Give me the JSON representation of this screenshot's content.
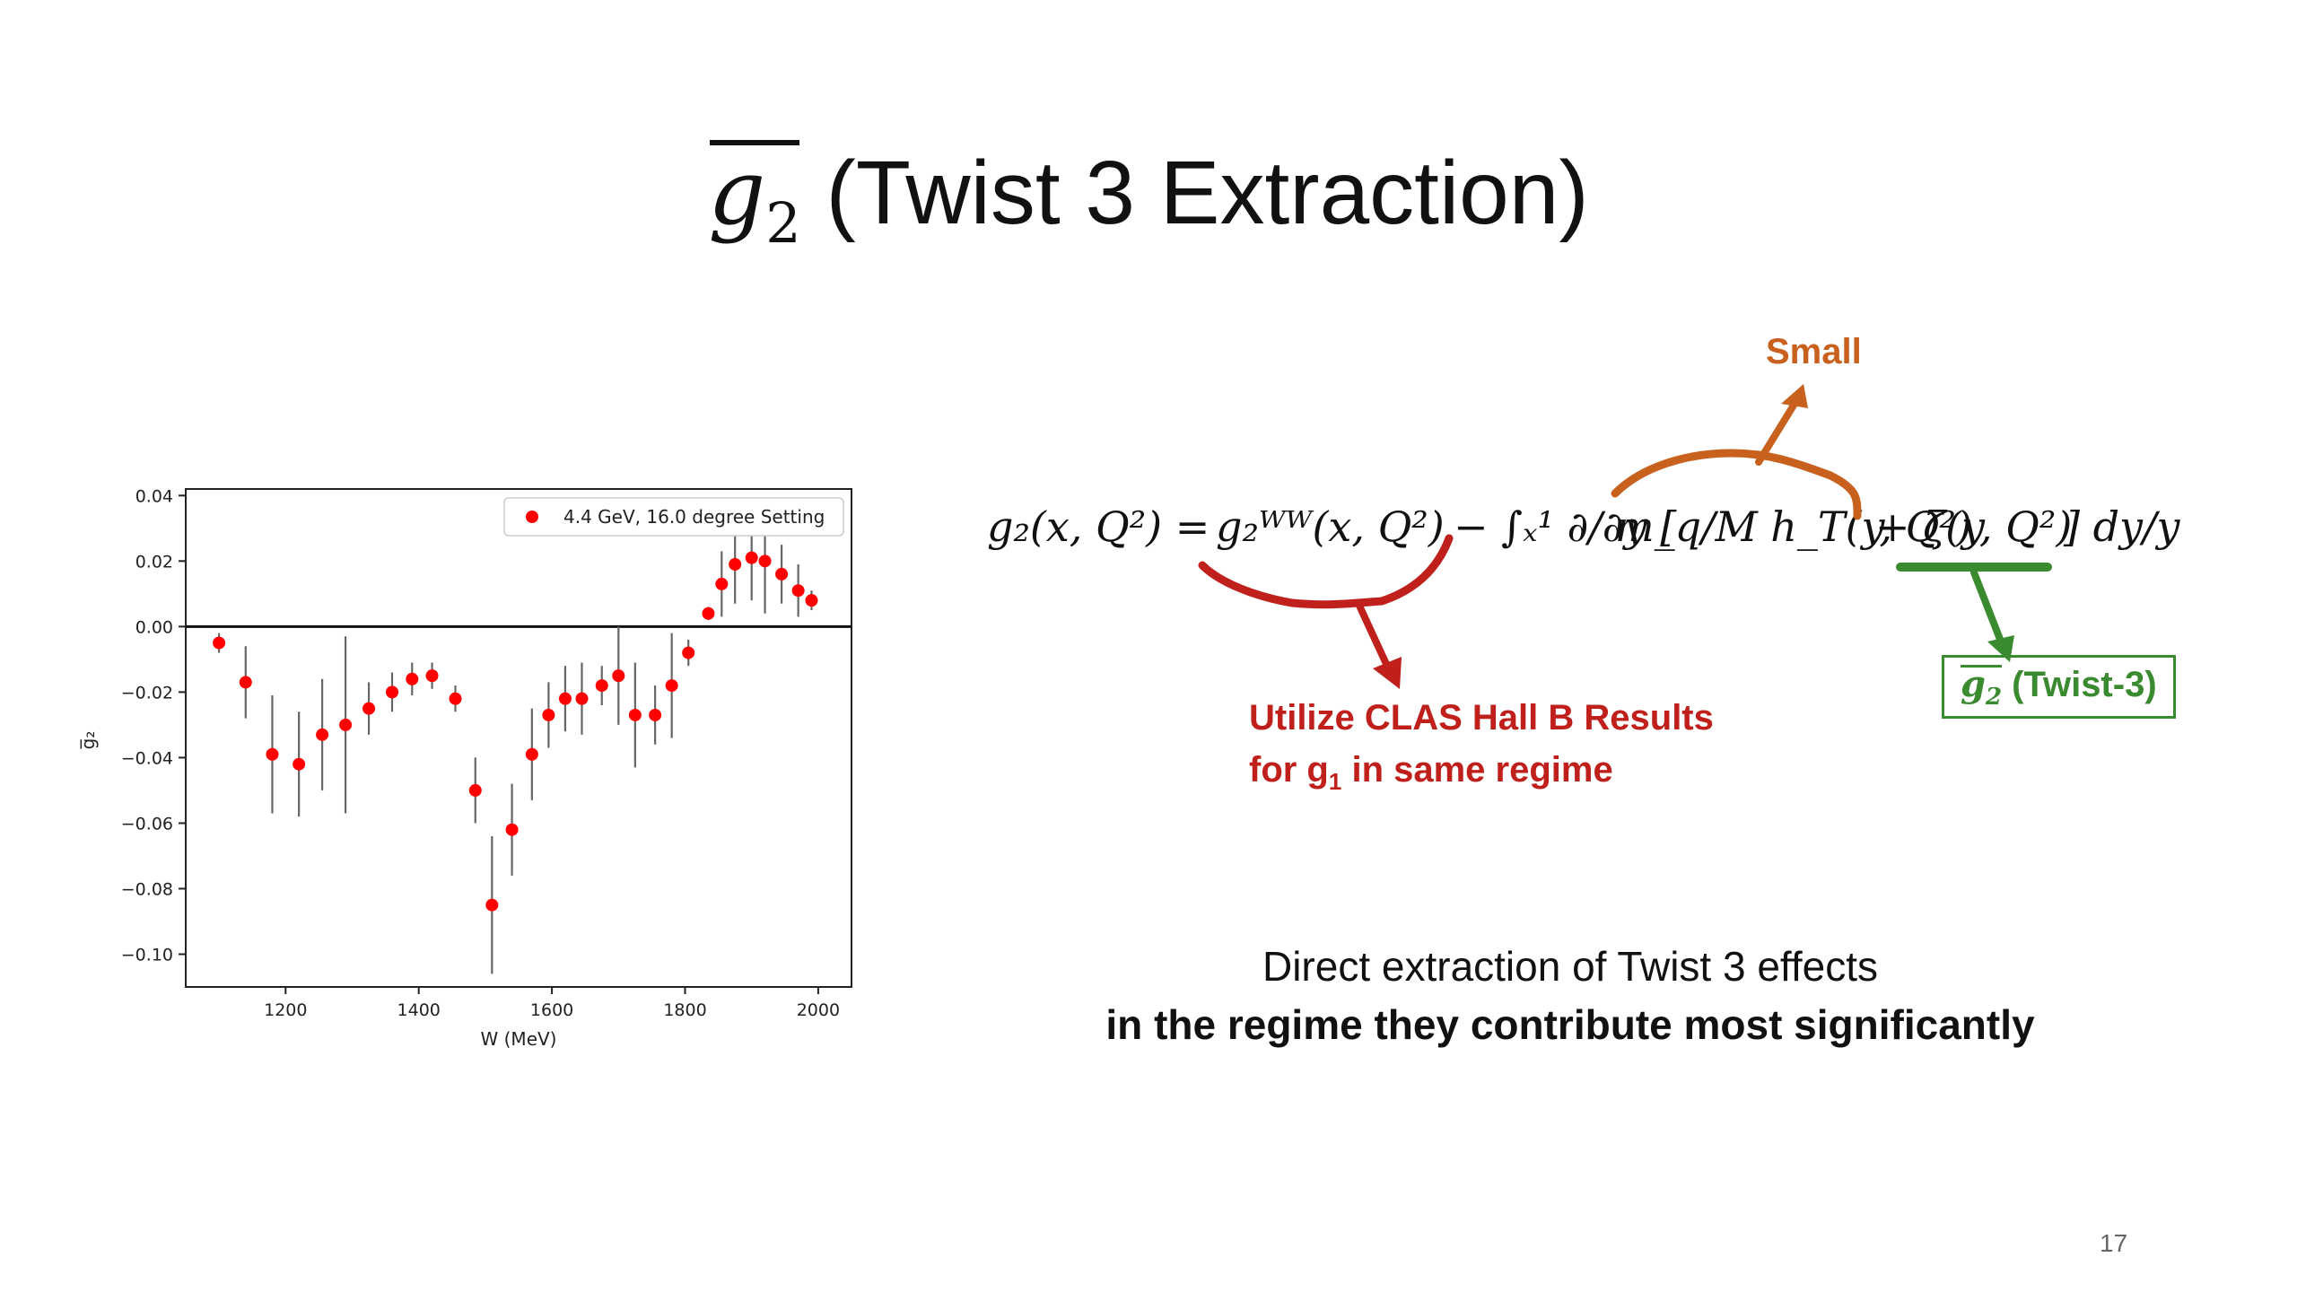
{
  "title": {
    "symbol": "g",
    "subscript": "2",
    "text": " (Twist 3 Extraction)"
  },
  "equation": {
    "lhs": "g₂(x, Q²) =",
    "ww_term": "g₂ᵂᵂ(x, Q²)",
    "integral": "− ∫ₓ¹ ∂/∂y [",
    "mq_term": "m_q/M h_T(y, Q²)",
    "zeta_term": "+ ζ(y, Q²)",
    "tail": "] dy/y"
  },
  "annotations": {
    "small": "Small",
    "clas_line1": "Utilize CLAS Hall B Results",
    "clas_line2_pre": "for g",
    "clas_line2_sub": "1",
    "clas_line2_post": " in same regime",
    "twist_box_symbol": "g",
    "twist_box_sub": "2",
    "twist_box_text": " (Twist-3)"
  },
  "summary": {
    "line1": "Direct extraction of Twist 3 effects",
    "line2": "in the regime they contribute most significantly"
  },
  "page_number": "17",
  "colors": {
    "red": "#c0201c",
    "orange": "#c8601e",
    "green": "#3a8a2f",
    "marker": "#ff0000"
  },
  "chart_data": {
    "type": "scatter",
    "xlabel": "W (MeV)",
    "ylabel": "g̅₂",
    "xlim": [
      1050,
      2050
    ],
    "ylim": [
      -0.11,
      0.042
    ],
    "xticks": [
      1200,
      1400,
      1600,
      1800,
      2000
    ],
    "yticks": [
      0.04,
      0.02,
      0.0,
      -0.02,
      -0.04,
      -0.06,
      -0.08,
      -0.1
    ],
    "ytick_labels": [
      "0.04",
      "0.02",
      "0.00",
      "−0.02",
      "−0.04",
      "−0.06",
      "−0.08",
      "−0.10"
    ],
    "hline": 0.0,
    "legend_placement": "top-right",
    "series": [
      {
        "name": "4.4 GeV, 16.0 degree Setting",
        "x": [
          1100,
          1140,
          1180,
          1220,
          1255,
          1290,
          1325,
          1360,
          1390,
          1420,
          1455,
          1485,
          1510,
          1540,
          1570,
          1595,
          1620,
          1645,
          1675,
          1700,
          1725,
          1755,
          1780,
          1805,
          1835,
          1855,
          1875,
          1900,
          1920,
          1945,
          1970,
          1990
        ],
        "y": [
          -0.005,
          -0.017,
          -0.039,
          -0.042,
          -0.033,
          -0.03,
          -0.025,
          -0.02,
          -0.016,
          -0.015,
          -0.022,
          -0.05,
          -0.085,
          -0.062,
          -0.039,
          -0.027,
          -0.022,
          -0.022,
          -0.018,
          -0.015,
          -0.027,
          -0.027,
          -0.018,
          -0.008,
          0.004,
          0.013,
          0.019,
          0.021,
          0.02,
          0.016,
          0.011,
          0.008
        ],
        "err": [
          0.003,
          0.011,
          0.018,
          0.016,
          0.017,
          0.027,
          0.008,
          0.006,
          0.005,
          0.004,
          0.004,
          0.01,
          0.021,
          0.014,
          0.014,
          0.01,
          0.01,
          0.011,
          0.006,
          0.015,
          0.016,
          0.009,
          0.016,
          0.004,
          0.002,
          0.01,
          0.012,
          0.013,
          0.016,
          0.009,
          0.008,
          0.003
        ]
      }
    ]
  }
}
